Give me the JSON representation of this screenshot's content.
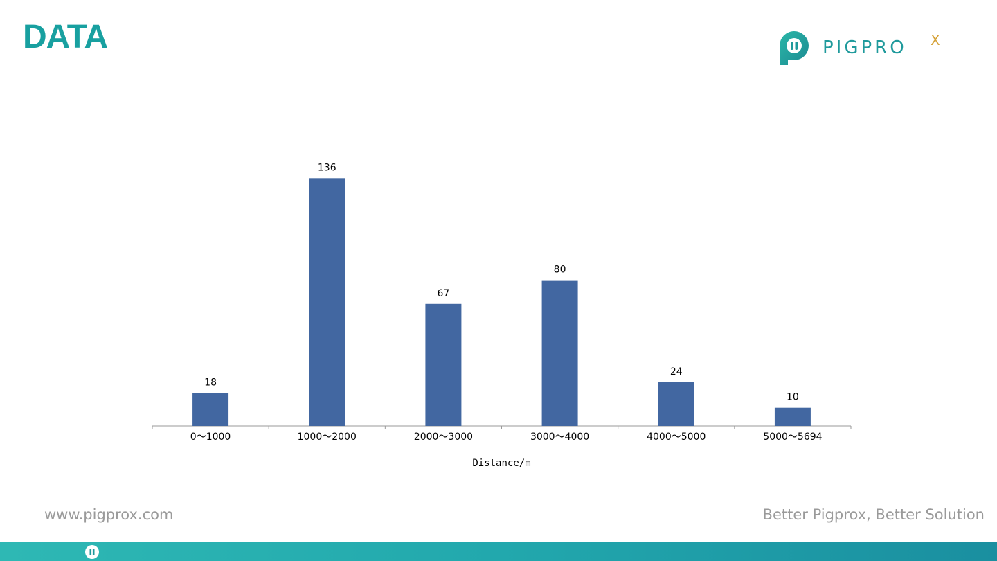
{
  "header": {
    "title": "DATA",
    "logo_text": "PIGPRO",
    "logo_suffix": "X"
  },
  "chart_data": {
    "type": "bar",
    "categories": [
      "0～1000",
      "1000～2000",
      "2000～3000",
      "3000～4000",
      "4000～5000",
      "5000～5694"
    ],
    "values": [
      18,
      136,
      67,
      80,
      24,
      10
    ],
    "xlabel": "Distance/m",
    "ylabel": "",
    "ylim": [
      0,
      160
    ],
    "grid": false,
    "legend": "none",
    "bar_color": "#4267a1"
  },
  "footer": {
    "website": "www.pigprox.com",
    "slogan": "Better Pigprox, Better Solution"
  },
  "colors": {
    "accent": "#18a0a0",
    "logo_accent": "#d6a33a"
  }
}
